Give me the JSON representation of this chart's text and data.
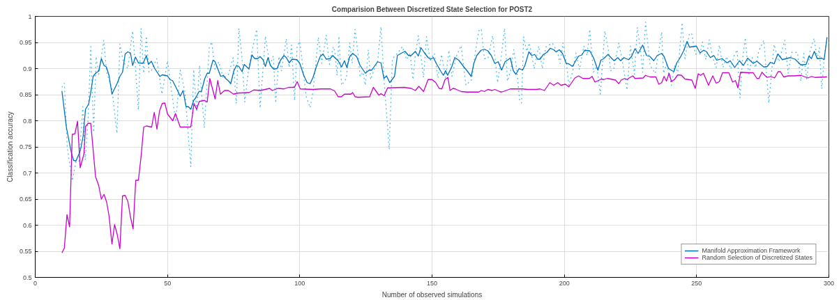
{
  "chart_data": {
    "type": "line",
    "title": "Comparision Between Discretized State Selection for POST2",
    "xlabel": "Number of observed simulations",
    "ylabel": "Classification accuracy",
    "xlim": [
      0,
      300
    ],
    "xticks": [
      0,
      50,
      100,
      150,
      200,
      250,
      300
    ],
    "ylim": [
      0.5,
      1
    ],
    "yticks": [
      0.5,
      0.55,
      0.6,
      0.65,
      0.7,
      0.75,
      0.8,
      0.85,
      0.9,
      0.95,
      1
    ],
    "grid": true,
    "legend": "bottom right",
    "series": [
      {
        "color": "#4dbeee",
        "line_style": "dotted",
        "x": [
          10.1,
          11,
          12.1,
          14,
          15.4,
          16.5,
          18,
          18.9,
          20,
          21,
          22.1,
          23,
          24,
          25.9,
          27,
          29,
          30.9,
          32,
          33.3,
          35,
          36.8,
          37.9,
          39,
          40,
          41,
          42,
          43,
          43.9,
          45.9,
          47.9,
          50,
          53.1,
          54.8,
          56.6,
          58.8,
          59.9,
          61,
          62.1,
          63.9,
          65.8,
          66.7,
          68,
          69.4,
          71.1,
          73.1,
          74.8,
          76,
          77,
          78.2,
          79.2,
          80.8,
          81.9,
          83.7,
          85,
          87,
          88.7,
          90,
          90.9,
          92.1,
          93.1,
          94.9,
          96,
          96.9,
          98,
          99,
          100,
          101.1,
          102.4,
          103.9,
          105,
          107,
          108.3,
          110,
          111.2,
          112.7,
          113.2,
          114.1,
          114.8,
          115.8,
          117.6,
          118.9,
          119.8,
          120.9,
          122,
          122.8,
          123.9,
          124.8,
          125.9,
          126.8,
          128.1,
          129.4,
          130.7,
          131.8,
          133.8,
          135,
          136.2,
          138.8,
          140.4,
          141.7,
          142.8,
          143.7,
          144.8,
          146.8,
          147.9,
          149.3,
          150.9,
          152.2,
          153.6,
          155.1,
          156.4,
          157.5,
          159.3,
          161,
          162.8,
          165,
          166.3,
          167.6,
          168.6,
          169.8,
          171.1,
          172.9,
          174.8,
          176.2,
          177.4,
          178.5,
          179.8,
          180.9,
          182,
          183.1,
          183.8,
          184.6,
          185.8,
          186.8,
          188.6,
          190.3,
          191.7,
          193,
          195.4,
          197.4,
          198.4,
          199.5,
          200.9,
          201.7,
          203.1,
          204.4,
          205.7,
          207.4,
          208.6,
          209.6,
          211,
          212.3,
          213.6,
          215.3,
          216.6,
          217.5,
          218.6,
          220.6,
          221.9,
          223.7,
          225,
          226.5,
          227.6,
          228.9,
          229.6,
          230.7,
          232.4,
          234.4,
          236.8,
          237.5,
          238.7,
          240.5,
          241.6,
          242.9,
          244.5,
          245.6,
          247.3,
          248.2,
          249.5,
          251.3,
          252.2,
          253.5,
          254.8,
          256.1,
          257.4,
          258.6,
          260,
          261.4,
          262.9,
          264,
          265.3,
          266.4,
          267.3,
          268.4,
          269.7,
          271,
          272.3,
          273.5,
          275.4,
          277.3,
          279.3,
          281.1,
          283.3,
          284.6,
          285.9,
          288.1,
          289.4,
          290.5,
          291.6,
          292.9,
          294.4,
          295.6,
          296.4,
          297.3,
          298.2,
          299.3
        ],
        "values": [
          0.864,
          0.872,
          0.749,
          0.685,
          0.721,
          0.721,
          0.827,
          0.725,
          0.806,
          0.942,
          0.778,
          0.923,
          0.889,
          0.954,
          0.893,
          0.861,
          0.776,
          0.947,
          0.913,
          0.9,
          0.972,
          0.902,
          0.821,
          0.977,
          0.891,
          0.962,
          0.893,
          0.896,
          0.919,
          0.851,
          0.915,
          0.798,
          0.897,
          0.855,
          0.712,
          0.898,
          0.817,
          0.906,
          0.786,
          0.94,
          0.951,
          0.898,
          0.913,
          0.881,
          0.889,
          0.921,
          0.833,
          0.977,
          0.919,
          0.836,
          0.904,
          0.932,
          0.975,
          0.824,
          0.962,
          0.906,
          0.924,
          0.834,
          0.923,
          0.896,
          0.957,
          0.902,
          0.945,
          0.839,
          0.942,
          0.952,
          0.906,
          0.847,
          0.825,
          0.855,
          0.96,
          0.91,
          0.964,
          0.908,
          0.942,
          0.934,
          0.887,
          0.962,
          0.868,
          0.881,
          0.949,
          0.91,
          0.975,
          0.93,
          0.885,
          0.893,
          0.868,
          0.936,
          0.879,
          0.898,
          0.913,
          0.98,
          0.883,
          0.745,
          0.919,
          0.925,
          0.942,
          0.917,
          0.929,
          0.879,
          0.927,
          0.963,
          0.883,
          0.961,
          0.915,
          0.929,
          0.882,
          0.927,
          0.883,
          0.935,
          0.885,
          0.925,
          0.944,
          0.868,
          0.879,
          0.929,
          0.972,
          0.976,
          0.919,
          0.919,
          0.963,
          0.873,
          0.925,
          0.977,
          0.876,
          0.898,
          0.936,
          0.898,
          0.84,
          0.834,
          0.961,
          0.933,
          0.949,
          0.9,
          0.943,
          0.9,
          0.941,
          0.949,
          0.932,
          0.91,
          0.949,
          0.906,
          0.868,
          0.893,
          0.93,
          0.898,
          0.943,
          0.925,
          0.975,
          0.893,
          0.904,
          0.851,
          0.972,
          0.938,
          0.896,
          0.898,
          0.949,
          0.915,
          0.859,
          0.943,
          0.889,
          0.979,
          0.932,
          0.893,
          0.989,
          0.906,
          0.891,
          0.97,
          0.891,
          0.908,
          0.868,
          0.906,
          0.893,
          0.988,
          0.919,
          0.968,
          0.966,
          0.928,
          0.928,
          0.951,
          0.917,
          0.955,
          0.921,
          0.902,
          0.945,
          0.902,
          0.923,
          0.899,
          0.923,
          0.936,
          0.844,
          0.915,
          0.959,
          0.887,
          0.921,
          0.902,
          0.934,
          0.954,
          0.834,
          0.946,
          0.913,
          0.954,
          0.891,
          0.931,
          0.931,
          0.876,
          0.929,
          0.879,
          0.934,
          0.958,
          0.919,
          0.94,
          0.861,
          0.919,
          0.96
        ]
      },
      {
        "name": "Manifold Approximation Framework",
        "color": "#0072bd",
        "line_style": "solid",
        "x": [
          10.1,
          11.8,
          13.6,
          14.5,
          15.4,
          16.5,
          17.1,
          18.1,
          19,
          20.2,
          21,
          21.9,
          23,
          24,
          25,
          26,
          26.9,
          27.9,
          29,
          31,
          32,
          33,
          34,
          35,
          36,
          36.8,
          37.9,
          39,
          40.8,
          42,
          42.8,
          43.9,
          45.2,
          47.1,
          48,
          49.1,
          50,
          50.9,
          51.9,
          53.5,
          54.8,
          55.9,
          57,
          57.9,
          58.8,
          59.9,
          60.7,
          61.9,
          62.8,
          64.1,
          65,
          65.8,
          67.2,
          68,
          69.2,
          70.1,
          71.1,
          72,
          73.1,
          73.9,
          75.1,
          76.1,
          77,
          78.2,
          79,
          80.8,
          81.9,
          83,
          84.1,
          85,
          86.1,
          87,
          88,
          88.9,
          90.1,
          91.4,
          92.7,
          94,
          94.9,
          96,
          97.1,
          98.9,
          100,
          101.5,
          102.8,
          103.9,
          105,
          106.3,
          107.7,
          108.8,
          110,
          111.4,
          112.5,
          113.2,
          114.5,
          115.8,
          116.9,
          117.8,
          118.9,
          120,
          121.5,
          122.8,
          124.8,
          126.2,
          127.2,
          129.4,
          130.7,
          131.8,
          132.8,
          134,
          135.8,
          136.9,
          138.6,
          139.8,
          141.1,
          142.1,
          143.7,
          144.8,
          145.8,
          147,
          148.5,
          149.4,
          150.5,
          151.8,
          153.4,
          154.3,
          155.1,
          155.9,
          157.5,
          158.6,
          160.1,
          161.9,
          163.2,
          164.8,
          165.8,
          166.9,
          168.5,
          169.8,
          171.1,
          172.4,
          173.7,
          175,
          176.3,
          177.6,
          179.6,
          180.7,
          181.7,
          182.9,
          184.2,
          185.1,
          186.6,
          187.7,
          188.8,
          189.9,
          190.8,
          192.1,
          193.4,
          194.7,
          196,
          196.9,
          198.1,
          199.3,
          200.7,
          201.7,
          203.1,
          204.2,
          205.4,
          206.6,
          207.7,
          209.6,
          211,
          212.7,
          213.8,
          214.9,
          216.5,
          218,
          218.8,
          220.2,
          221.3,
          222.5,
          224.3,
          225.4,
          226.7,
          227.9,
          229.6,
          231.1,
          232.4,
          233.8,
          235.1,
          236.8,
          237.7,
          239.4,
          241.4,
          242.5,
          243.8,
          245.1,
          246.4,
          247.3,
          249.9,
          251.3,
          252.6,
          253.6,
          255.2,
          256.5,
          257.6,
          259.6,
          261.5,
          262.7,
          264.4,
          266.2,
          267.7,
          269.3,
          271.4,
          272.8,
          275.4,
          276.7,
          277.9,
          279.3,
          280.7,
          282.4,
          284.6,
          285.5,
          287.2,
          289.4,
          291.4,
          292.5,
          293.4,
          294.5,
          295.6,
          297.3,
          298.2,
          299.3
        ],
        "values": [
          0.857,
          0.787,
          0.74,
          0.724,
          0.723,
          0.736,
          0.744,
          0.77,
          0.822,
          0.832,
          0.855,
          0.885,
          0.892,
          0.895,
          0.919,
          0.906,
          0.903,
          0.887,
          0.851,
          0.872,
          0.885,
          0.893,
          0.928,
          0.932,
          0.93,
          0.906,
          0.922,
          0.911,
          0.91,
          0.925,
          0.908,
          0.914,
          0.9,
          0.885,
          0.888,
          0.887,
          0.886,
          0.879,
          0.877,
          0.861,
          0.847,
          0.858,
          0.827,
          0.827,
          0.822,
          0.839,
          0.844,
          0.856,
          0.856,
          0.881,
          0.891,
          0.891,
          0.916,
          0.913,
          0.897,
          0.885,
          0.887,
          0.881,
          0.876,
          0.871,
          0.896,
          0.906,
          0.904,
          0.894,
          0.908,
          0.899,
          0.926,
          0.919,
          0.919,
          0.923,
          0.917,
          0.904,
          0.921,
          0.906,
          0.899,
          0.9,
          0.916,
          0.925,
          0.921,
          0.911,
          0.918,
          0.917,
          0.91,
          0.887,
          0.873,
          0.871,
          0.883,
          0.904,
          0.923,
          0.928,
          0.918,
          0.919,
          0.925,
          0.921,
          0.915,
          0.903,
          0.915,
          0.902,
          0.923,
          0.929,
          0.923,
          0.906,
          0.891,
          0.897,
          0.897,
          0.913,
          0.911,
          0.881,
          0.886,
          0.873,
          0.885,
          0.925,
          0.93,
          0.933,
          0.925,
          0.925,
          0.933,
          0.924,
          0.94,
          0.931,
          0.921,
          0.918,
          0.921,
          0.908,
          0.894,
          0.887,
          0.896,
          0.887,
          0.904,
          0.921,
          0.916,
          0.904,
          0.896,
          0.885,
          0.91,
          0.925,
          0.935,
          0.937,
          0.934,
          0.925,
          0.91,
          0.913,
          0.897,
          0.913,
          0.92,
          0.896,
          0.889,
          0.9,
          0.897,
          0.906,
          0.932,
          0.925,
          0.927,
          0.918,
          0.918,
          0.927,
          0.931,
          0.939,
          0.936,
          0.932,
          0.936,
          0.929,
          0.91,
          0.909,
          0.904,
          0.914,
          0.924,
          0.926,
          0.935,
          0.934,
          0.921,
          0.897,
          0.916,
          0.919,
          0.927,
          0.919,
          0.915,
          0.921,
          0.915,
          0.921,
          0.917,
          0.923,
          0.938,
          0.929,
          0.945,
          0.925,
          0.923,
          0.915,
          0.925,
          0.929,
          0.923,
          0.9,
          0.894,
          0.911,
          0.921,
          0.934,
          0.952,
          0.941,
          0.943,
          0.93,
          0.935,
          0.933,
          0.921,
          0.925,
          0.916,
          0.919,
          0.911,
          0.915,
          0.902,
          0.915,
          0.906,
          0.92,
          0.91,
          0.914,
          0.903,
          0.904,
          0.912,
          0.909,
          0.928,
          0.917,
          0.92,
          0.921,
          0.918,
          0.907,
          0.908,
          0.924,
          0.919,
          0.933,
          0.919,
          0.92,
          0.917,
          0.96
        ]
      },
      {
        "name": "Random Selection of Discretized States",
        "color": "#cc00cc",
        "line_style": "solid",
        "x": [
          10.1,
          11,
          12,
          13,
          14,
          15,
          16,
          17,
          18.4,
          19,
          20,
          21,
          22.8,
          24,
          25,
          26,
          27,
          27.9,
          29,
          30,
          31,
          32,
          33,
          34,
          35,
          36,
          37,
          38,
          39,
          40,
          41,
          42,
          43,
          44,
          45,
          46,
          47,
          48,
          49,
          50,
          52,
          53,
          54.8,
          58.8,
          60,
          61,
          62,
          64,
          65,
          66,
          68,
          69,
          70,
          71.6,
          73,
          75,
          76.4,
          80.8,
          82.6,
          85.2,
          88.6,
          89.6,
          91.8,
          94,
          95.8,
          98,
          99,
          100.2,
          105,
          108,
          111.6,
          113.2,
          114.5,
          115.7,
          116.9,
          119.3,
          120,
          120.9,
          122,
          126.4,
          127.8,
          129.9,
          130.7,
          131.9,
          133.2,
          139.5,
          142.1,
          143.7,
          145,
          146.8,
          148.5,
          150,
          151.4,
          152.7,
          153.7,
          154.9,
          156,
          156.8,
          157.9,
          158.8,
          161,
          163.2,
          167.6,
          168.6,
          169.8,
          171.1,
          172.7,
          173.7,
          175.5,
          176.3,
          179.6,
          184.2,
          186,
          189.5,
          190.8,
          192.5,
          194.5,
          196,
          197.5,
          198.7,
          200.4,
          201.7,
          204,
          205.4,
          207,
          209.5,
          210.5,
          211.6,
          214,
          214.9,
          216.2,
          217.5,
          219.3,
          220.6,
          221.5,
          222.8,
          223.7,
          224.8,
          225.9,
          226.7,
          229.8,
          230.7,
          232.4,
          234.6,
          235.7,
          236.8,
          237.7,
          238.6,
          239.6,
          240.5,
          241.6,
          242.9,
          244.3,
          245.6,
          248.2,
          249.5,
          250.6,
          251.5,
          252.6,
          254.5,
          256.1,
          257.4,
          258.6,
          259.8,
          262.2,
          263.6,
          264.7,
          265.6,
          266.6,
          269.7,
          271.4,
          272.8,
          273.6,
          274.7,
          275.8,
          276.7,
          278,
          279.5,
          280.8,
          281.7,
          282.9,
          284.6,
          286.8,
          289.4,
          292.1,
          293.4,
          294.7,
          299.3
        ],
        "values": [
          0.547,
          0.556,
          0.62,
          0.597,
          0.774,
          0.775,
          0.799,
          0.71,
          0.736,
          0.789,
          0.795,
          0.795,
          0.693,
          0.676,
          0.65,
          0.659,
          0.644,
          0.618,
          0.564,
          0.601,
          0.582,
          0.555,
          0.656,
          0.657,
          0.646,
          0.616,
          0.593,
          0.686,
          0.686,
          0.731,
          0.788,
          0.79,
          0.789,
          0.788,
          0.816,
          0.784,
          0.819,
          0.833,
          0.834,
          0.813,
          0.8,
          0.814,
          0.788,
          0.788,
          0.833,
          0.822,
          0.837,
          0.839,
          0.836,
          0.881,
          0.842,
          0.877,
          0.851,
          0.858,
          0.858,
          0.851,
          0.853,
          0.854,
          0.859,
          0.858,
          0.862,
          0.858,
          0.862,
          0.861,
          0.864,
          0.864,
          0.875,
          0.861,
          0.86,
          0.861,
          0.861,
          0.857,
          0.846,
          0.846,
          0.851,
          0.851,
          0.854,
          0.846,
          0.845,
          0.846,
          0.864,
          0.849,
          0.852,
          0.848,
          0.863,
          0.864,
          0.862,
          0.858,
          0.866,
          0.856,
          0.879,
          0.879,
          0.873,
          0.862,
          0.861,
          0.879,
          0.883,
          0.858,
          0.862,
          0.861,
          0.856,
          0.855,
          0.855,
          0.858,
          0.856,
          0.86,
          0.858,
          0.86,
          0.856,
          0.855,
          0.861,
          0.861,
          0.86,
          0.86,
          0.861,
          0.858,
          0.873,
          0.868,
          0.873,
          0.868,
          0.87,
          0.865,
          0.882,
          0.886,
          0.881,
          0.881,
          0.885,
          0.874,
          0.88,
          0.879,
          0.881,
          0.88,
          0.878,
          0.871,
          0.878,
          0.881,
          0.879,
          0.883,
          0.886,
          0.881,
          0.882,
          0.887,
          0.884,
          0.884,
          0.87,
          0.873,
          0.885,
          0.876,
          0.891,
          0.875,
          0.879,
          0.888,
          0.887,
          0.88,
          0.878,
          0.862,
          0.89,
          0.887,
          0.891,
          0.868,
          0.886,
          0.872,
          0.875,
          0.892,
          0.892,
          0.874,
          0.877,
          0.863,
          0.893,
          0.892,
          0.892,
          0.881,
          0.881,
          0.893,
          0.887,
          0.883,
          0.885,
          0.882,
          0.894,
          0.894,
          0.884,
          0.886,
          0.886,
          0.887,
          0.882,
          0.885,
          0.883,
          0.884
        ]
      }
    ]
  }
}
